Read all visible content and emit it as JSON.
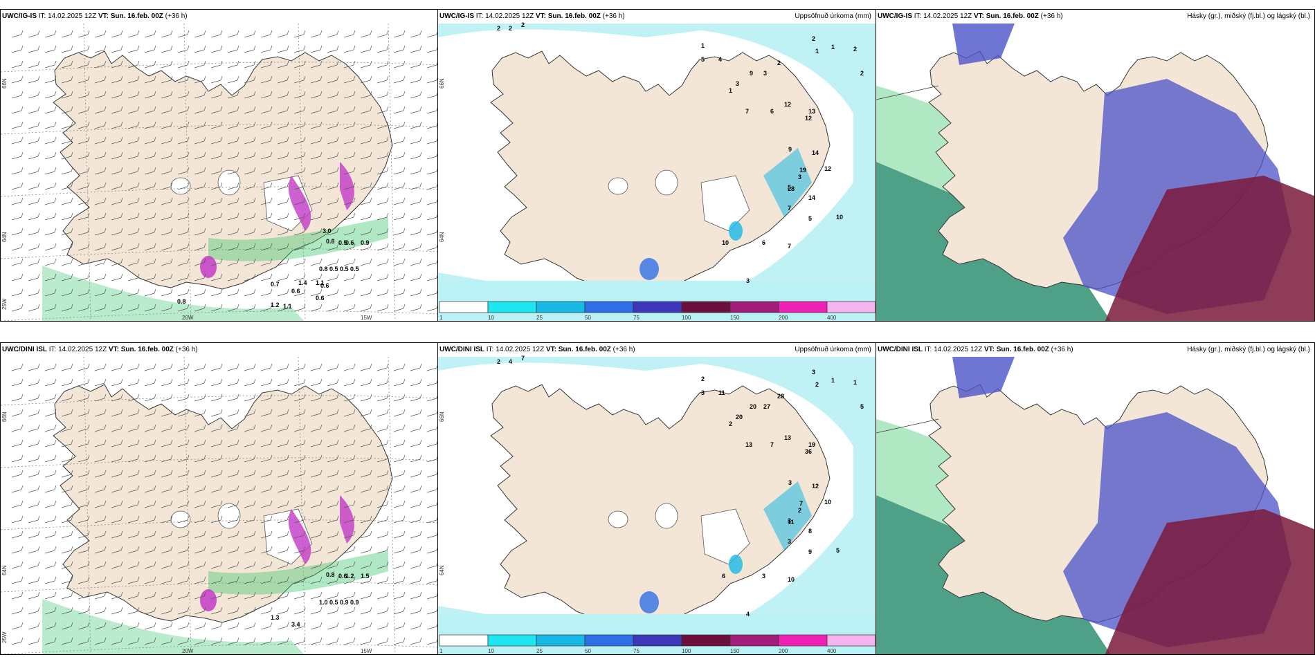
{
  "colors": {
    "land": "#f4e6d6",
    "sea_light": "#b9f1f4",
    "green": "#39c66c",
    "magenta": "#c23ac6",
    "blue": "#4b52c8",
    "darkred": "#7b1a3c",
    "teal": "#2f8f72"
  },
  "panels": [
    {
      "id": "ig-wind",
      "model": "UWC/IG-IS",
      "it_label": "IT:",
      "it_value": "14.02.2025 12Z",
      "vt_label": "VT:",
      "vt_value": "Sun. 16.feb. 00Z",
      "lead": "(+36 h)",
      "right_title": "",
      "lat_labels": [
        "66N",
        "64N",
        "25W"
      ],
      "lon_labels": [
        "20W",
        "15W"
      ],
      "values": [
        "0.8",
        "0.5",
        "0.6",
        "0.9",
        "0.8",
        "0.5",
        "0.5",
        "0.5",
        "0.7",
        "0.6",
        "0.6",
        "0.6",
        "1.2",
        "1.1",
        "0.8",
        "3.0",
        "1.4",
        "1.1"
      ]
    },
    {
      "id": "ig-precip",
      "model": "UWC/IG-IS",
      "it_label": "IT:",
      "it_value": "14.02.2025 12Z",
      "vt_label": "VT:",
      "vt_value": "Sun. 16.feb. 00Z",
      "lead": "(+36 h)",
      "right_title": "Uppsöfnuð úrkoma (mm)",
      "lat_labels": [
        "66N",
        "64N"
      ],
      "lon_labels": [],
      "values": [
        "2",
        "2",
        "2",
        "1",
        "5",
        "4",
        "3",
        "9",
        "3",
        "2",
        "12",
        "13",
        "12",
        "14",
        "19",
        "12",
        "28",
        "14",
        "7",
        "5",
        "10",
        "6",
        "7",
        "3",
        "10",
        "5",
        "9",
        "7",
        "6",
        "1",
        "3",
        "2",
        "1",
        "1",
        "2",
        "2"
      ],
      "colorbar": [
        "1",
        "10",
        "25",
        "50",
        "75",
        "100",
        "150",
        "200",
        "400"
      ]
    },
    {
      "id": "ig-cloud",
      "model": "UWC/IG-IS",
      "it_label": "IT:",
      "it_value": "14.02.2025 12Z",
      "vt_label": "VT:",
      "vt_value": "Sun. 16.feb. 00Z",
      "lead": "(+36 h)",
      "right_title": "Hásky (gr.), miðský (fj.bl.) og lágský (bl.)"
    },
    {
      "id": "dini-wind",
      "model": "UWC/DINI ISL",
      "it_label": "IT:",
      "it_value": "14.02.2025 12Z",
      "vt_label": "VT:",
      "vt_value": "Sun. 16.feb. 00Z",
      "lead": "(+36 h)",
      "right_title": "",
      "lat_labels": [
        "66N",
        "64N",
        "25W"
      ],
      "lon_labels": [
        "20W",
        "15W"
      ],
      "values": [
        "0.8",
        "0.6",
        "1.2",
        "1.5",
        "1.0",
        "0.5",
        "0.9",
        "0.9",
        "1.3",
        "3.4"
      ]
    },
    {
      "id": "dini-precip",
      "model": "UWC/DINI ISL",
      "it_label": "IT:",
      "it_value": "14.02.2025 12Z",
      "vt_label": "VT:",
      "vt_value": "Sun. 16.feb. 00Z",
      "lead": "(+36 h)",
      "right_title": "Uppsöfnuð úrkoma (mm)",
      "lat_labels": [
        "66N",
        "64N"
      ],
      "lon_labels": [],
      "values": [
        "2",
        "4",
        "7",
        "2",
        "3",
        "11",
        "20",
        "20",
        "27",
        "28",
        "13",
        "19",
        "36",
        "12",
        "7",
        "10",
        "11",
        "8",
        "3",
        "9",
        "6",
        "3",
        "10",
        "4",
        "5",
        "3",
        "3",
        "13",
        "7",
        "2",
        "2",
        "3",
        "2",
        "1",
        "1",
        "5"
      ],
      "colorbar": [
        "1",
        "10",
        "25",
        "50",
        "75",
        "100",
        "150",
        "200",
        "400"
      ]
    },
    {
      "id": "dini-cloud",
      "model": "UWC/DINI ISL",
      "it_label": "IT:",
      "it_value": "14.02.2025 12Z",
      "vt_label": "VT:",
      "vt_value": "Sun. 16.feb. 00Z",
      "lead": "(+36 h)",
      "right_title": "Hásky (gr.), miðský (fj.bl.) og lágský (bl.)"
    }
  ]
}
